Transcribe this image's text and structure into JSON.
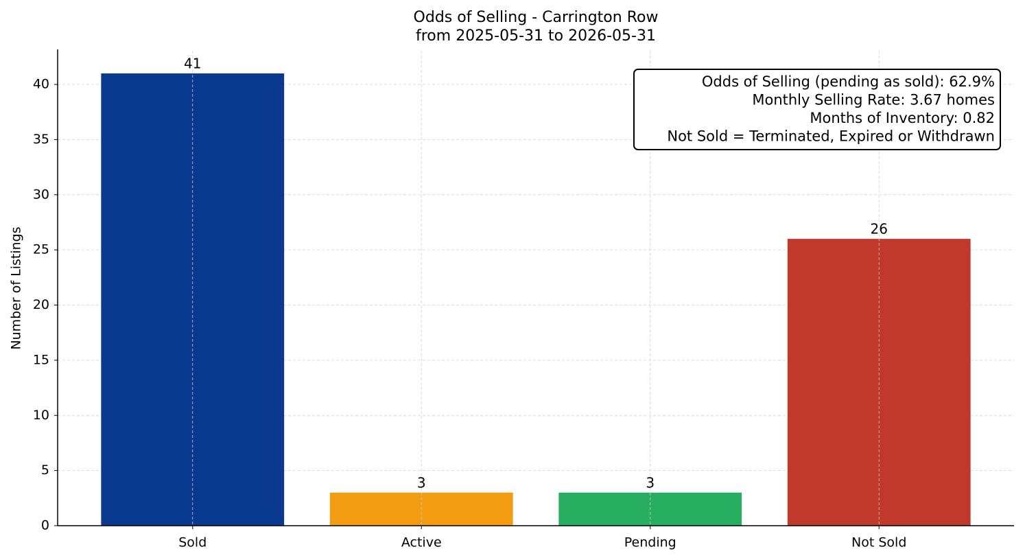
{
  "chart_data": {
    "type": "bar",
    "title": "Odds of Selling - Carrington Row",
    "subtitle": "from 2025-05-31 to 2026-05-31",
    "ylabel": "Number of Listings",
    "categories": [
      "Sold",
      "Active",
      "Pending",
      "Not Sold"
    ],
    "values": [
      41,
      3,
      3,
      26
    ],
    "colors": [
      "#0a3a8f",
      "#f39c12",
      "#27ae60",
      "#c0392b"
    ],
    "ylim": [
      0,
      43.05
    ],
    "yticks": [
      0,
      5,
      10,
      15,
      20,
      25,
      30,
      35,
      40
    ],
    "grid": true,
    "annotation": [
      "Odds of Selling (pending as sold): 62.9%",
      "Monthly Selling Rate: 3.67 homes",
      "Months of Inventory: 0.82",
      "Not Sold = Terminated, Expired or Withdrawn"
    ]
  }
}
